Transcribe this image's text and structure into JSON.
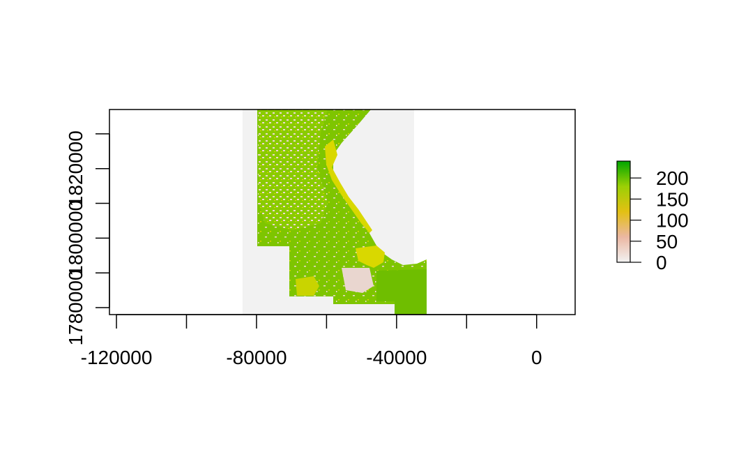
{
  "chart_data": {
    "type": "heatmap",
    "title": "",
    "xlabel": "",
    "ylabel": "",
    "xlim": [
      -122000,
      11000
    ],
    "ylim": [
      1778000,
      1837000
    ],
    "x_ticks": [
      -120000,
      -100000,
      -80000,
      -60000,
      -40000,
      -20000,
      0
    ],
    "x_tick_labels": [
      "-120000",
      "",
      "-80000",
      "",
      "-40000",
      "",
      "0"
    ],
    "y_ticks": [
      1780000,
      1790000,
      1800000,
      1810000,
      1820000,
      1830000
    ],
    "y_tick_labels": [
      "1780000",
      "",
      "1800000",
      "",
      "1820000",
      ""
    ],
    "raster_extent": {
      "xmin": -84000,
      "xmax": -35000,
      "ymin": 1778000,
      "ymax": 1837000
    },
    "grid": false,
    "legend": {
      "placement": "right",
      "type": "continuous",
      "range": [
        0,
        240
      ],
      "ticks": [
        0,
        50,
        100,
        150,
        200
      ],
      "tick_labels": [
        "0",
        "50",
        "100",
        "150",
        "200"
      ],
      "colors": [
        "#f2f2f2",
        "#ebb7a2",
        "#e3c013",
        "#9cd005",
        "#00a600"
      ]
    },
    "fill_colors": {
      "nodata": "#f2f2f2",
      "high": "#7ec500",
      "mid": "#d9d800",
      "low": "#efd9d3"
    }
  }
}
